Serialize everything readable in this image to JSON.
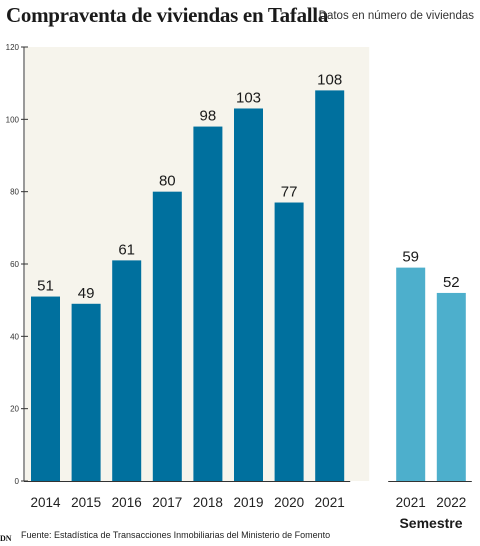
{
  "header": {
    "title": "Compraventa de viviendas en Tafalla",
    "subtitle": "Datos en número de viviendas"
  },
  "footer": {
    "source": "Fuente: Estadística de Transacciones Inmobiliarias del Ministerio de Fomento",
    "logo": "DN"
  },
  "colors": {
    "annual_bar": "#00709e",
    "semester_bar": "#4dafcc",
    "shaded_background": "#f6f4ec",
    "axis": "#333333"
  },
  "chart_data": {
    "type": "bar",
    "title": "Compraventa de viviendas en Tafalla",
    "subtitle": "Datos en número de viviendas",
    "ylim": [
      0,
      120
    ],
    "yticks": [
      0,
      20,
      40,
      60,
      80,
      100,
      120
    ],
    "grid": false,
    "groups": [
      {
        "name": "",
        "shaded": true,
        "color": "#00709e",
        "categories": [
          "2014",
          "2015",
          "2016",
          "2017",
          "2018",
          "2019",
          "2020",
          "2021"
        ],
        "values": [
          51,
          49,
          61,
          80,
          98,
          103,
          77,
          108
        ]
      },
      {
        "name": "Semestre",
        "shaded": false,
        "color": "#4dafcc",
        "categories": [
          "2021",
          "2022"
        ],
        "values": [
          59,
          52
        ]
      }
    ]
  }
}
